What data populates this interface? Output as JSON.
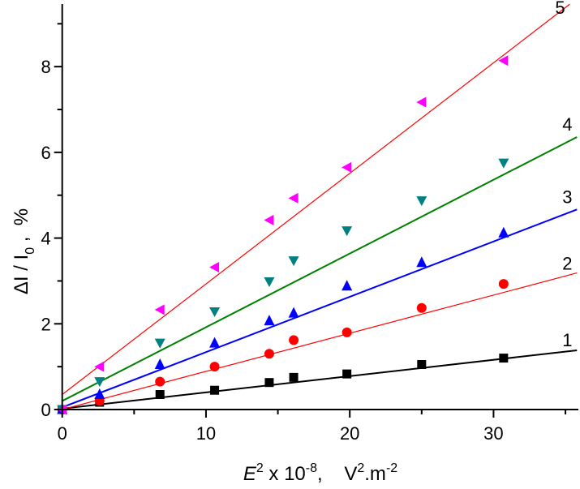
{
  "chart_data": {
    "type": "scatter",
    "title": "",
    "xlabel": {
      "var": "E",
      "sup1": "2",
      "mid": " x 10",
      "sup2": "-8",
      "unit": ",    V",
      "sup3": "2",
      "unit2": ".m",
      "sup4": "-2"
    },
    "ylabel": {
      "delta": "ΔI / I",
      "sub": "0",
      "rest": " ,  %"
    },
    "xlim": [
      0,
      35.9
    ],
    "ylim": [
      0,
      9.46
    ],
    "xticks": [
      0,
      10,
      20,
      30
    ],
    "xminor": [
      5,
      15,
      25,
      35
    ],
    "yticks": [
      0,
      2,
      4,
      6,
      8
    ],
    "yminor": [
      1,
      3,
      5,
      7,
      9
    ],
    "grid": false,
    "x": [
      0,
      2.6,
      6.8,
      10.6,
      14.4,
      16.1,
      19.8,
      25.0,
      30.7
    ],
    "series": [
      {
        "name": "1",
        "color": "#000000",
        "marker": "square",
        "values": [
          0,
          0.17,
          0.35,
          0.45,
          0.63,
          0.75,
          0.83,
          1.05,
          1.2
        ],
        "fit": {
          "intercept": 0.02,
          "slope": 0.038,
          "xmax": 35.8
        }
      },
      {
        "name": "2",
        "color": "#ff0000",
        "marker": "circle",
        "values": [
          0,
          0.2,
          0.65,
          1.0,
          1.3,
          1.62,
          1.8,
          2.37,
          2.93
        ],
        "fit": {
          "intercept": 0.0,
          "slope": 0.089,
          "xmax": 35.8
        }
      },
      {
        "name": "3",
        "color": "#0000ff",
        "marker": "triangle-up",
        "values": [
          0,
          0.35,
          1.05,
          1.55,
          2.07,
          2.25,
          2.88,
          3.43,
          4.12
        ],
        "fit": {
          "intercept": 0.05,
          "slope": 0.129,
          "xmax": 35.8
        }
      },
      {
        "name": "4",
        "color": "#008080",
        "linecolor": "#008000",
        "marker": "triangle-down",
        "values": [
          0,
          0.65,
          1.55,
          2.28,
          2.98,
          3.47,
          4.17,
          4.87,
          5.75
        ],
        "fit": {
          "intercept": 0.2,
          "slope": 0.172,
          "xmax": 35.8
        }
      },
      {
        "name": "5",
        "color": "#ff00ff",
        "linecolor": "#ff0000",
        "marker": "triangle-left",
        "values": [
          0,
          1.0,
          2.33,
          3.32,
          4.42,
          4.93,
          5.65,
          7.17,
          8.14
        ],
        "fit": {
          "intercept": 0.35,
          "slope": 0.258,
          "xmax": 35.3
        }
      }
    ]
  }
}
